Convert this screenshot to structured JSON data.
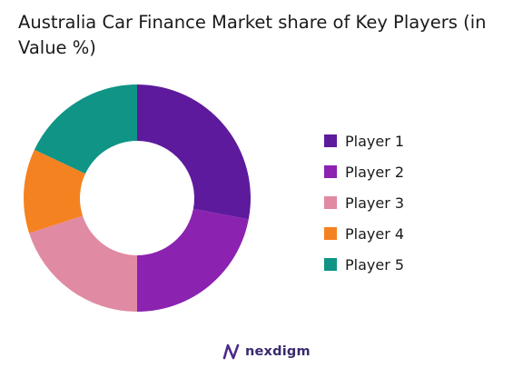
{
  "chart_data": {
    "type": "donut",
    "title": "Australia Car Finance Market share of Key Players (in Value %)",
    "categories": [
      "Player 1",
      "Player 2",
      "Player 3",
      "Player 4",
      "Player 5"
    ],
    "values": [
      28,
      22,
      20,
      12,
      18
    ],
    "colors": [
      "#5e1a9c",
      "#8b22b0",
      "#e08aa3",
      "#f58220",
      "#0f9486"
    ],
    "legend_position": "right"
  },
  "brand": {
    "logo_text": "nexdigm",
    "logo_icon": "nexdigm-logo-icon"
  }
}
